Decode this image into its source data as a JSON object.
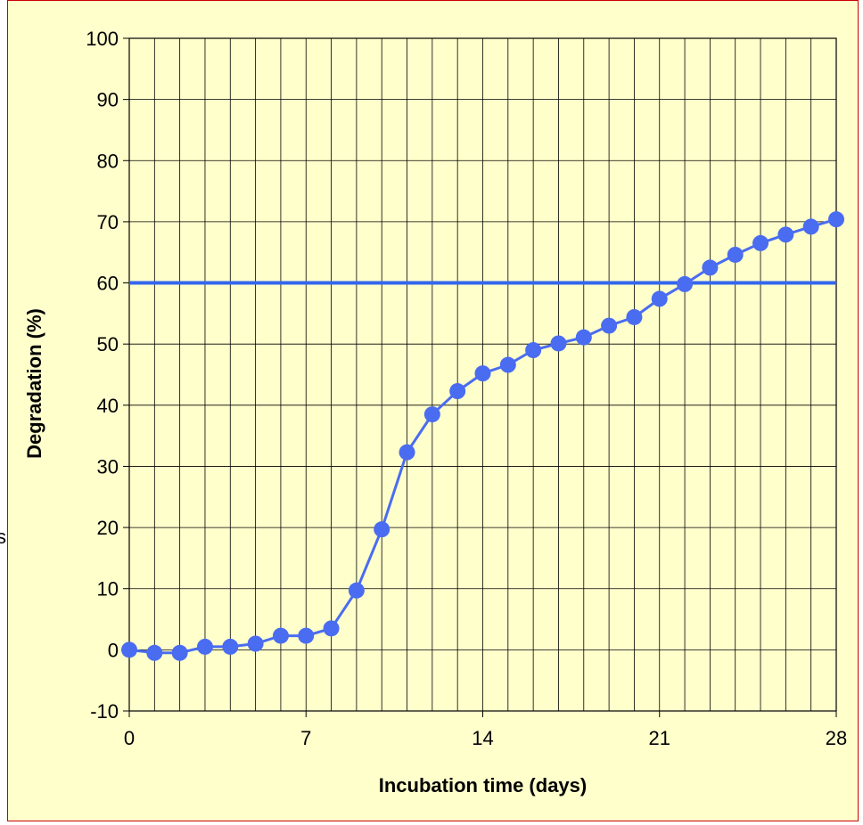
{
  "chart_data": {
    "type": "line",
    "title": "",
    "xlabel": "Incubation time (days)",
    "ylabel": "Degradation (%)",
    "xlim": [
      0,
      28
    ],
    "ylim": [
      -10,
      100
    ],
    "xticks": [
      "0",
      "7",
      "14",
      "21",
      "28"
    ],
    "xtick_values": [
      0,
      7,
      14,
      21,
      28
    ],
    "yticks": [
      "-10",
      "0",
      "10",
      "20",
      "30",
      "40",
      "50",
      "60",
      "70",
      "80",
      "90",
      "100"
    ],
    "ytick_values": [
      -10,
      0,
      10,
      20,
      30,
      40,
      50,
      60,
      70,
      80,
      90,
      100
    ],
    "grid": {
      "vertical_every": 1,
      "horizontal_every": 10
    },
    "reference_line": {
      "y": 60,
      "color": "#3366ee"
    },
    "series": [
      {
        "color": "#4a6cf0",
        "marker": "circle",
        "x": [
          0,
          1,
          2,
          3,
          4,
          5,
          6,
          7,
          8,
          9,
          10,
          11,
          12,
          13,
          14,
          15,
          16,
          17,
          18,
          19,
          20,
          21,
          22,
          23,
          24,
          25,
          26,
          27,
          28
        ],
        "y": [
          0,
          -0.5,
          -0.5,
          0.5,
          0.5,
          1,
          2.3,
          2.3,
          3.5,
          9.7,
          19.7,
          32.3,
          38.5,
          42.3,
          45.2,
          46.6,
          49,
          50.1,
          51.1,
          53,
          54.4,
          57.4,
          59.8,
          62.5,
          64.6,
          66.5,
          67.9,
          69.2,
          70.4
        ]
      }
    ],
    "colors": {
      "background": "#ffffcc",
      "border": "#cc0000",
      "grid": "#000000"
    }
  },
  "edge_glyph": "s"
}
